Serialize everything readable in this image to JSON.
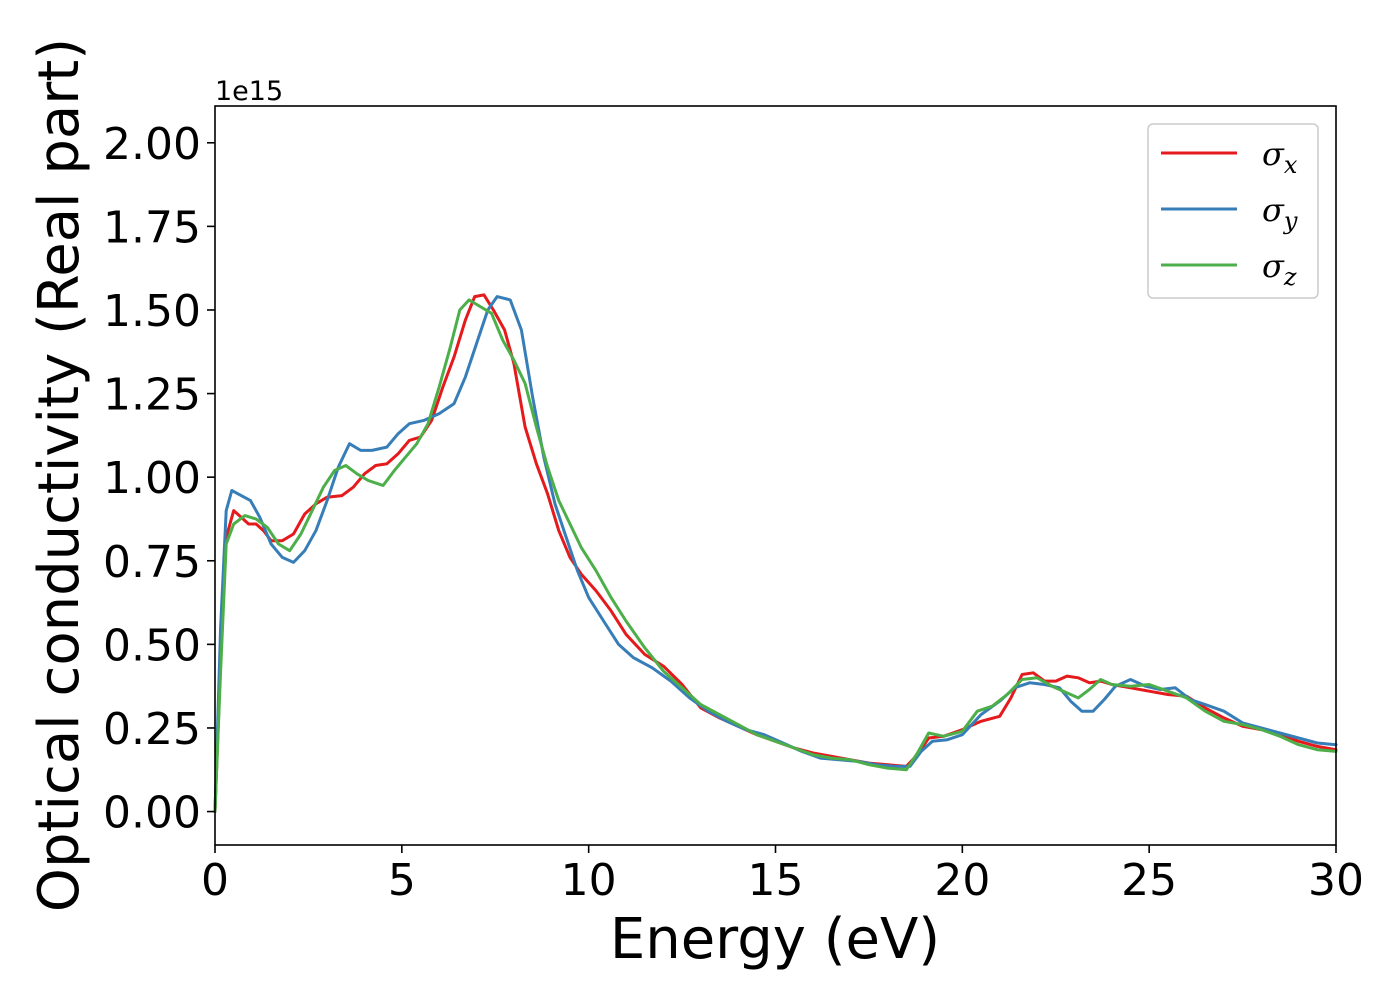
{
  "chart_data": {
    "type": "line",
    "xlabel": "Energy (eV)",
    "ylabel": "Optical conductivity (Real part)",
    "y_offset_label": "1e15",
    "xlim": [
      0,
      30
    ],
    "ylim": [
      -0.1,
      2.11
    ],
    "x_ticks": [
      0,
      5,
      10,
      15,
      20,
      25,
      30
    ],
    "y_ticks": [
      0.0,
      0.25,
      0.5,
      0.75,
      1.0,
      1.25,
      1.5,
      1.75,
      2.0
    ],
    "x_tick_labels": [
      "0",
      "5",
      "10",
      "15",
      "20",
      "25",
      "30"
    ],
    "y_tick_labels": [
      "0.00",
      "0.25",
      "0.50",
      "0.75",
      "1.00",
      "1.25",
      "1.50",
      "1.75",
      "2.00"
    ],
    "grid": false,
    "legend_position": "top-right",
    "series": [
      {
        "name": "σx",
        "legend_main": "σ",
        "legend_sub": "x",
        "color": "#e41a1c",
        "points": [
          [
            0,
            0
          ],
          [
            0.15,
            0.45
          ],
          [
            0.3,
            0.82
          ],
          [
            0.5,
            0.9
          ],
          [
            0.7,
            0.88
          ],
          [
            0.9,
            0.86
          ],
          [
            1.1,
            0.86
          ],
          [
            1.3,
            0.84
          ],
          [
            1.5,
            0.81
          ],
          [
            1.8,
            0.81
          ],
          [
            2.1,
            0.83
          ],
          [
            2.4,
            0.89
          ],
          [
            2.7,
            0.92
          ],
          [
            3.0,
            0.94
          ],
          [
            3.4,
            0.945
          ],
          [
            3.7,
            0.97
          ],
          [
            4.0,
            1.01
          ],
          [
            4.3,
            1.035
          ],
          [
            4.6,
            1.04
          ],
          [
            4.9,
            1.07
          ],
          [
            5.2,
            1.11
          ],
          [
            5.5,
            1.12
          ],
          [
            5.8,
            1.17
          ],
          [
            6.1,
            1.27
          ],
          [
            6.4,
            1.36
          ],
          [
            6.7,
            1.47
          ],
          [
            6.95,
            1.54
          ],
          [
            7.2,
            1.545
          ],
          [
            7.45,
            1.5
          ],
          [
            7.75,
            1.44
          ],
          [
            8.0,
            1.34
          ],
          [
            8.3,
            1.15
          ],
          [
            8.6,
            1.04
          ],
          [
            8.9,
            0.95
          ],
          [
            9.2,
            0.84
          ],
          [
            9.5,
            0.76
          ],
          [
            9.8,
            0.71
          ],
          [
            10.2,
            0.66
          ],
          [
            10.6,
            0.6
          ],
          [
            11.0,
            0.53
          ],
          [
            11.5,
            0.47
          ],
          [
            12.0,
            0.435
          ],
          [
            12.5,
            0.38
          ],
          [
            13.0,
            0.31
          ],
          [
            13.5,
            0.28
          ],
          [
            14.0,
            0.255
          ],
          [
            14.5,
            0.23
          ],
          [
            15.0,
            0.21
          ],
          [
            15.5,
            0.19
          ],
          [
            16.0,
            0.175
          ],
          [
            16.5,
            0.165
          ],
          [
            17.0,
            0.155
          ],
          [
            17.5,
            0.145
          ],
          [
            18.0,
            0.14
          ],
          [
            18.5,
            0.135
          ],
          [
            18.8,
            0.17
          ],
          [
            19.1,
            0.22
          ],
          [
            19.5,
            0.225
          ],
          [
            20.0,
            0.245
          ],
          [
            20.5,
            0.27
          ],
          [
            21.0,
            0.285
          ],
          [
            21.3,
            0.34
          ],
          [
            21.6,
            0.41
          ],
          [
            21.9,
            0.415
          ],
          [
            22.2,
            0.39
          ],
          [
            22.5,
            0.39
          ],
          [
            22.8,
            0.405
          ],
          [
            23.1,
            0.4
          ],
          [
            23.4,
            0.385
          ],
          [
            23.7,
            0.39
          ],
          [
            24.0,
            0.38
          ],
          [
            24.5,
            0.37
          ],
          [
            25.0,
            0.36
          ],
          [
            25.5,
            0.35
          ],
          [
            26.0,
            0.345
          ],
          [
            26.5,
            0.31
          ],
          [
            27.0,
            0.28
          ],
          [
            27.5,
            0.255
          ],
          [
            28.0,
            0.245
          ],
          [
            28.5,
            0.23
          ],
          [
            29.0,
            0.21
          ],
          [
            29.5,
            0.195
          ],
          [
            30.0,
            0.185
          ]
        ]
      },
      {
        "name": "σy",
        "legend_main": "σ",
        "legend_sub": "y",
        "color": "#377eb8",
        "points": [
          [
            0,
            0
          ],
          [
            0.15,
            0.55
          ],
          [
            0.3,
            0.9
          ],
          [
            0.45,
            0.96
          ],
          [
            0.7,
            0.945
          ],
          [
            0.95,
            0.93
          ],
          [
            1.2,
            0.88
          ],
          [
            1.5,
            0.8
          ],
          [
            1.8,
            0.76
          ],
          [
            2.1,
            0.745
          ],
          [
            2.4,
            0.78
          ],
          [
            2.7,
            0.84
          ],
          [
            3.0,
            0.93
          ],
          [
            3.3,
            1.03
          ],
          [
            3.6,
            1.1
          ],
          [
            3.9,
            1.08
          ],
          [
            4.2,
            1.08
          ],
          [
            4.6,
            1.09
          ],
          [
            4.9,
            1.13
          ],
          [
            5.2,
            1.16
          ],
          [
            5.6,
            1.17
          ],
          [
            6.0,
            1.19
          ],
          [
            6.4,
            1.22
          ],
          [
            6.7,
            1.3
          ],
          [
            7.0,
            1.4
          ],
          [
            7.3,
            1.5
          ],
          [
            7.55,
            1.54
          ],
          [
            7.9,
            1.53
          ],
          [
            8.2,
            1.44
          ],
          [
            8.5,
            1.24
          ],
          [
            8.8,
            1.06
          ],
          [
            9.1,
            0.92
          ],
          [
            9.4,
            0.82
          ],
          [
            9.7,
            0.72
          ],
          [
            10.0,
            0.64
          ],
          [
            10.4,
            0.57
          ],
          [
            10.8,
            0.5
          ],
          [
            11.2,
            0.46
          ],
          [
            11.7,
            0.43
          ],
          [
            12.2,
            0.39
          ],
          [
            12.7,
            0.34
          ],
          [
            13.2,
            0.3
          ],
          [
            13.7,
            0.27
          ],
          [
            14.2,
            0.245
          ],
          [
            14.7,
            0.23
          ],
          [
            15.2,
            0.205
          ],
          [
            15.7,
            0.18
          ],
          [
            16.2,
            0.16
          ],
          [
            16.7,
            0.155
          ],
          [
            17.2,
            0.15
          ],
          [
            17.7,
            0.14
          ],
          [
            18.2,
            0.135
          ],
          [
            18.6,
            0.135
          ],
          [
            18.9,
            0.18
          ],
          [
            19.2,
            0.21
          ],
          [
            19.6,
            0.215
          ],
          [
            20.0,
            0.23
          ],
          [
            20.5,
            0.29
          ],
          [
            21.0,
            0.33
          ],
          [
            21.4,
            0.37
          ],
          [
            21.8,
            0.385
          ],
          [
            22.2,
            0.38
          ],
          [
            22.6,
            0.37
          ],
          [
            22.9,
            0.33
          ],
          [
            23.2,
            0.3
          ],
          [
            23.5,
            0.3
          ],
          [
            23.8,
            0.335
          ],
          [
            24.1,
            0.375
          ],
          [
            24.5,
            0.395
          ],
          [
            24.9,
            0.375
          ],
          [
            25.3,
            0.365
          ],
          [
            25.7,
            0.37
          ],
          [
            26.1,
            0.335
          ],
          [
            26.5,
            0.32
          ],
          [
            27.0,
            0.3
          ],
          [
            27.5,
            0.265
          ],
          [
            28.0,
            0.25
          ],
          [
            28.5,
            0.235
          ],
          [
            29.0,
            0.22
          ],
          [
            29.5,
            0.205
          ],
          [
            30.0,
            0.2
          ]
        ]
      },
      {
        "name": "σz",
        "legend_main": "σ",
        "legend_sub": "z",
        "color": "#4daf4a",
        "points": [
          [
            0,
            0
          ],
          [
            0.15,
            0.42
          ],
          [
            0.3,
            0.8
          ],
          [
            0.5,
            0.86
          ],
          [
            0.8,
            0.885
          ],
          [
            1.1,
            0.875
          ],
          [
            1.4,
            0.85
          ],
          [
            1.7,
            0.8
          ],
          [
            2.0,
            0.78
          ],
          [
            2.3,
            0.83
          ],
          [
            2.6,
            0.9
          ],
          [
            2.9,
            0.97
          ],
          [
            3.2,
            1.02
          ],
          [
            3.5,
            1.035
          ],
          [
            3.8,
            1.01
          ],
          [
            4.1,
            0.99
          ],
          [
            4.5,
            0.975
          ],
          [
            4.8,
            1.02
          ],
          [
            5.1,
            1.06
          ],
          [
            5.4,
            1.1
          ],
          [
            5.7,
            1.16
          ],
          [
            6.0,
            1.27
          ],
          [
            6.3,
            1.39
          ],
          [
            6.55,
            1.5
          ],
          [
            6.8,
            1.53
          ],
          [
            7.1,
            1.51
          ],
          [
            7.4,
            1.49
          ],
          [
            7.7,
            1.41
          ],
          [
            8.0,
            1.35
          ],
          [
            8.3,
            1.28
          ],
          [
            8.6,
            1.15
          ],
          [
            8.9,
            1.03
          ],
          [
            9.2,
            0.93
          ],
          [
            9.5,
            0.86
          ],
          [
            9.8,
            0.79
          ],
          [
            10.2,
            0.72
          ],
          [
            10.6,
            0.64
          ],
          [
            11.0,
            0.57
          ],
          [
            11.5,
            0.49
          ],
          [
            12.0,
            0.42
          ],
          [
            12.5,
            0.37
          ],
          [
            13.0,
            0.32
          ],
          [
            13.5,
            0.29
          ],
          [
            14.0,
            0.26
          ],
          [
            14.5,
            0.23
          ],
          [
            15.0,
            0.21
          ],
          [
            15.5,
            0.19
          ],
          [
            16.0,
            0.17
          ],
          [
            16.5,
            0.16
          ],
          [
            17.0,
            0.155
          ],
          [
            17.5,
            0.14
          ],
          [
            18.0,
            0.13
          ],
          [
            18.5,
            0.125
          ],
          [
            18.8,
            0.175
          ],
          [
            19.1,
            0.235
          ],
          [
            19.5,
            0.225
          ],
          [
            20.0,
            0.24
          ],
          [
            20.4,
            0.3
          ],
          [
            20.8,
            0.315
          ],
          [
            21.2,
            0.35
          ],
          [
            21.6,
            0.395
          ],
          [
            22.0,
            0.4
          ],
          [
            22.4,
            0.375
          ],
          [
            22.8,
            0.355
          ],
          [
            23.1,
            0.34
          ],
          [
            23.4,
            0.365
          ],
          [
            23.7,
            0.395
          ],
          [
            24.0,
            0.38
          ],
          [
            24.5,
            0.375
          ],
          [
            25.0,
            0.38
          ],
          [
            25.5,
            0.36
          ],
          [
            26.0,
            0.34
          ],
          [
            26.5,
            0.3
          ],
          [
            27.0,
            0.27
          ],
          [
            27.5,
            0.26
          ],
          [
            28.0,
            0.245
          ],
          [
            28.5,
            0.225
          ],
          [
            29.0,
            0.2
          ],
          [
            29.5,
            0.185
          ],
          [
            30.0,
            0.18
          ]
        ]
      }
    ]
  }
}
